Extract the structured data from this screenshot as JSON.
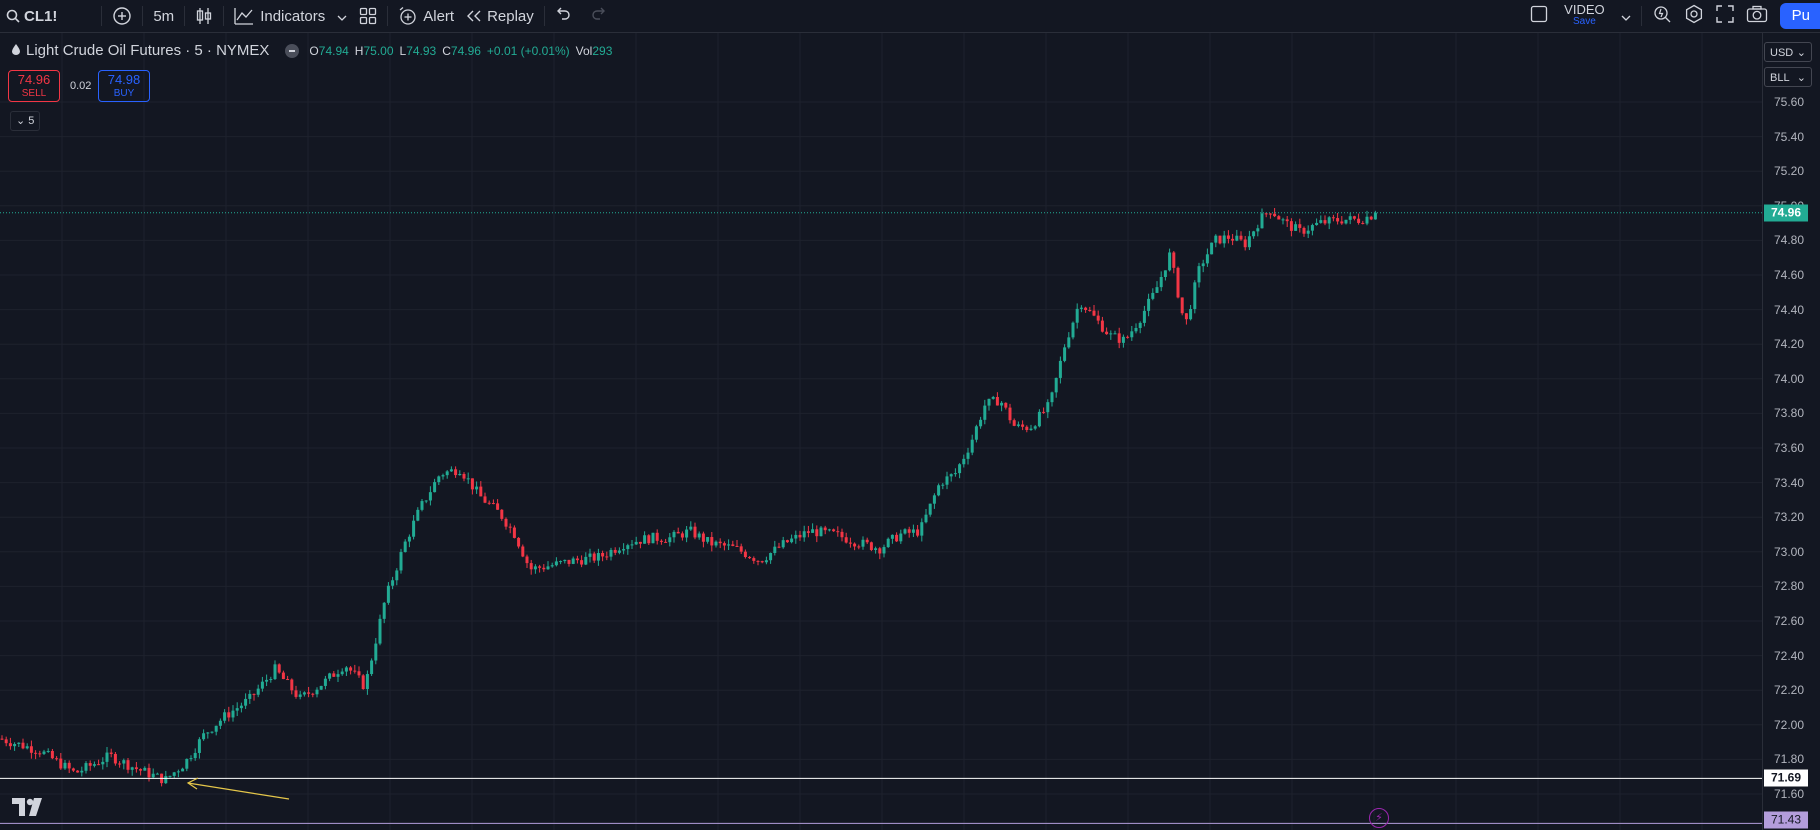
{
  "toolbar": {
    "symbol": "CL1!",
    "interval": "5m",
    "indicators_label": "Indicators",
    "alert_label": "Alert",
    "replay_label": "Replay",
    "video_label": "VIDEO",
    "video_sub": "Save",
    "publish_label": "Pu"
  },
  "legend": {
    "title": "Light Crude Oil Futures · 5 · NYMEX",
    "o_key": "O",
    "o_val": "74.94",
    "h_key": "H",
    "h_val": "75.00",
    "l_key": "L",
    "l_val": "74.93",
    "c_key": "C",
    "c_val": "74.96",
    "change": "+0.01 (+0.01%)",
    "vol_key": "Vol",
    "vol_val": "293"
  },
  "trade": {
    "sell_price": "74.96",
    "sell_label": "SELL",
    "spread": "0.02",
    "buy_price": "74.98",
    "buy_label": "BUY"
  },
  "interval_chip": "5",
  "scale": {
    "currency": "USD",
    "unit": "BLL"
  },
  "badges": {
    "last_price": "74.96",
    "line_a": "71.69",
    "line_b": "71.43"
  },
  "colors": {
    "up": "#22ab94",
    "down": "#f23645",
    "background": "#131722",
    "accent": "#2962ff"
  },
  "chart_data": {
    "type": "candlestick",
    "ytick_labels": [
      "75.60",
      "75.40",
      "75.20",
      "75.00",
      "74.80",
      "74.60",
      "74.40",
      "74.20",
      "74.00",
      "73.80",
      "73.60",
      "73.40",
      "73.20",
      "73.00",
      "72.80",
      "72.60",
      "72.40",
      "72.20",
      "72.00",
      "71.80",
      "71.60"
    ],
    "ylim": [
      71.4,
      75.8
    ],
    "last_price": 74.96,
    "horizontal_lines": [
      71.69,
      71.43
    ],
    "price_path": [
      [
        0,
        71.92
      ],
      [
        40,
        71.85
      ],
      [
        75,
        71.72
      ],
      [
        110,
        71.82
      ],
      [
        135,
        71.75
      ],
      [
        165,
        71.68
      ],
      [
        185,
        71.78
      ],
      [
        205,
        71.95
      ],
      [
        225,
        72.05
      ],
      [
        250,
        72.15
      ],
      [
        275,
        72.32
      ],
      [
        300,
        72.15
      ],
      [
        325,
        72.25
      ],
      [
        345,
        72.35
      ],
      [
        365,
        72.22
      ],
      [
        385,
        72.72
      ],
      [
        405,
        73.05
      ],
      [
        420,
        73.25
      ],
      [
        440,
        73.45
      ],
      [
        460,
        73.48
      ],
      [
        480,
        73.32
      ],
      [
        500,
        73.22
      ],
      [
        515,
        73.1
      ],
      [
        530,
        72.9
      ],
      [
        550,
        72.92
      ],
      [
        575,
        72.95
      ],
      [
        600,
        72.97
      ],
      [
        625,
        73.05
      ],
      [
        650,
        73.08
      ],
      [
        670,
        73.08
      ],
      [
        690,
        73.12
      ],
      [
        710,
        73.05
      ],
      [
        735,
        73.02
      ],
      [
        760,
        72.95
      ],
      [
        785,
        73.05
      ],
      [
        810,
        73.12
      ],
      [
        835,
        73.1
      ],
      [
        860,
        73.05
      ],
      [
        880,
        73.02
      ],
      [
        900,
        73.1
      ],
      [
        920,
        73.12
      ],
      [
        940,
        73.4
      ],
      [
        955,
        73.45
      ],
      [
        970,
        73.62
      ],
      [
        985,
        73.85
      ],
      [
        1000,
        73.88
      ],
      [
        1015,
        73.72
      ],
      [
        1030,
        73.72
      ],
      [
        1050,
        73.85
      ],
      [
        1065,
        74.2
      ],
      [
        1080,
        74.45
      ],
      [
        1095,
        74.35
      ],
      [
        1110,
        74.25
      ],
      [
        1125,
        74.22
      ],
      [
        1140,
        74.35
      ],
      [
        1155,
        74.5
      ],
      [
        1170,
        74.72
      ],
      [
        1185,
        74.3
      ],
      [
        1200,
        74.65
      ],
      [
        1215,
        74.8
      ],
      [
        1230,
        74.82
      ],
      [
        1245,
        74.78
      ],
      [
        1260,
        74.92
      ],
      [
        1270,
        74.98
      ],
      [
        1285,
        74.9
      ],
      [
        1300,
        74.85
      ],
      [
        1320,
        74.9
      ],
      [
        1340,
        74.92
      ],
      [
        1360,
        74.92
      ],
      [
        1378,
        74.96
      ]
    ]
  }
}
